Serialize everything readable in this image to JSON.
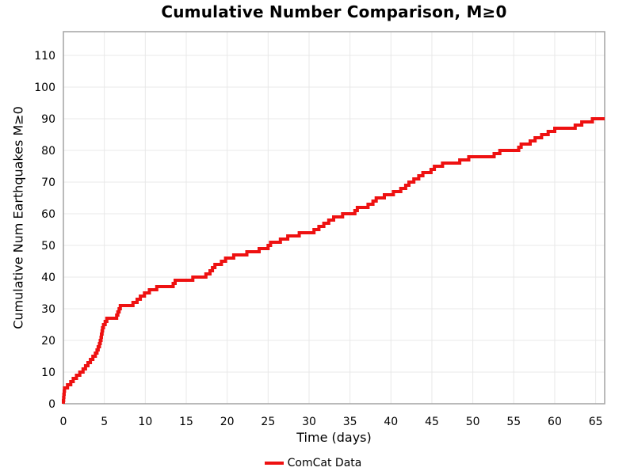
{
  "figure": {
    "background": "#ffffff",
    "title": "Cumulative Number Comparison, M≥0"
  },
  "legend": {
    "items": [
      {
        "label": "ComCat Data",
        "color": "#ee1111",
        "style": "solid-line"
      }
    ],
    "position": "bottom-center"
  },
  "chart_data": {
    "type": "line",
    "subtype": "cumulative-step",
    "title": "Cumulative Number Comparison, M≥0",
    "xlabel": "Time (days)",
    "ylabel": "Cumulative Num Earthquakes M≥0",
    "xlim": [
      0,
      66.1
    ],
    "ylim": [
      0,
      117.5
    ],
    "xticks": [
      0,
      5,
      10,
      15,
      20,
      25,
      30,
      35,
      40,
      45,
      50,
      55,
      60,
      65
    ],
    "yticks": [
      0,
      10,
      20,
      30,
      40,
      50,
      60,
      70,
      80,
      90,
      100,
      110
    ],
    "grid": true,
    "grid_color": "#e8e8e8",
    "spine_color": "#a3a3a3",
    "legend_position": "bottom-center",
    "series": [
      {
        "name": "ComCat Data",
        "color": "#ee1111",
        "line_width": 4,
        "start": [
          0,
          0
        ],
        "end_day": 66.1,
        "points": [
          [
            0.0,
            1
          ],
          [
            0.03,
            2
          ],
          [
            0.06,
            3
          ],
          [
            0.1,
            4
          ],
          [
            0.14,
            5
          ],
          [
            0.5,
            6
          ],
          [
            0.9,
            7
          ],
          [
            1.2,
            8
          ],
          [
            1.6,
            9
          ],
          [
            2.0,
            10
          ],
          [
            2.4,
            11
          ],
          [
            2.7,
            12
          ],
          [
            3.0,
            13
          ],
          [
            3.3,
            14
          ],
          [
            3.6,
            15
          ],
          [
            3.9,
            16
          ],
          [
            4.1,
            17
          ],
          [
            4.25,
            18
          ],
          [
            4.4,
            19
          ],
          [
            4.5,
            20
          ],
          [
            4.6,
            21
          ],
          [
            4.65,
            22
          ],
          [
            4.72,
            23
          ],
          [
            4.78,
            24
          ],
          [
            4.9,
            25
          ],
          [
            5.1,
            26
          ],
          [
            5.3,
            27
          ],
          [
            6.5,
            28
          ],
          [
            6.65,
            29
          ],
          [
            6.8,
            30
          ],
          [
            6.95,
            31
          ],
          [
            8.5,
            32
          ],
          [
            9.0,
            33
          ],
          [
            9.4,
            34
          ],
          [
            9.9,
            35
          ],
          [
            10.5,
            36
          ],
          [
            11.4,
            37
          ],
          [
            13.4,
            38
          ],
          [
            13.65,
            39
          ],
          [
            15.8,
            40
          ],
          [
            17.4,
            41
          ],
          [
            17.9,
            42
          ],
          [
            18.2,
            43
          ],
          [
            18.5,
            44
          ],
          [
            19.3,
            45
          ],
          [
            19.8,
            46
          ],
          [
            20.8,
            47
          ],
          [
            22.4,
            48
          ],
          [
            23.9,
            49
          ],
          [
            25.0,
            50
          ],
          [
            25.3,
            51
          ],
          [
            26.5,
            52
          ],
          [
            27.4,
            53
          ],
          [
            28.8,
            54
          ],
          [
            30.6,
            55
          ],
          [
            31.2,
            56
          ],
          [
            31.8,
            57
          ],
          [
            32.4,
            58
          ],
          [
            33.0,
            59
          ],
          [
            34.1,
            60
          ],
          [
            35.6,
            61
          ],
          [
            35.9,
            62
          ],
          [
            37.2,
            63
          ],
          [
            37.8,
            64
          ],
          [
            38.2,
            65
          ],
          [
            39.2,
            66
          ],
          [
            40.3,
            67
          ],
          [
            41.2,
            68
          ],
          [
            41.8,
            69
          ],
          [
            42.2,
            70
          ],
          [
            42.8,
            71
          ],
          [
            43.4,
            72
          ],
          [
            43.9,
            73
          ],
          [
            44.9,
            74
          ],
          [
            45.3,
            75
          ],
          [
            46.3,
            76
          ],
          [
            48.4,
            77
          ],
          [
            49.5,
            78
          ],
          [
            52.6,
            79
          ],
          [
            53.3,
            80
          ],
          [
            55.6,
            81
          ],
          [
            55.9,
            82
          ],
          [
            57.0,
            83
          ],
          [
            57.6,
            84
          ],
          [
            58.4,
            85
          ],
          [
            59.2,
            86
          ],
          [
            60.0,
            87
          ],
          [
            62.5,
            88
          ],
          [
            63.3,
            89
          ],
          [
            64.6,
            90
          ]
        ]
      }
    ]
  }
}
